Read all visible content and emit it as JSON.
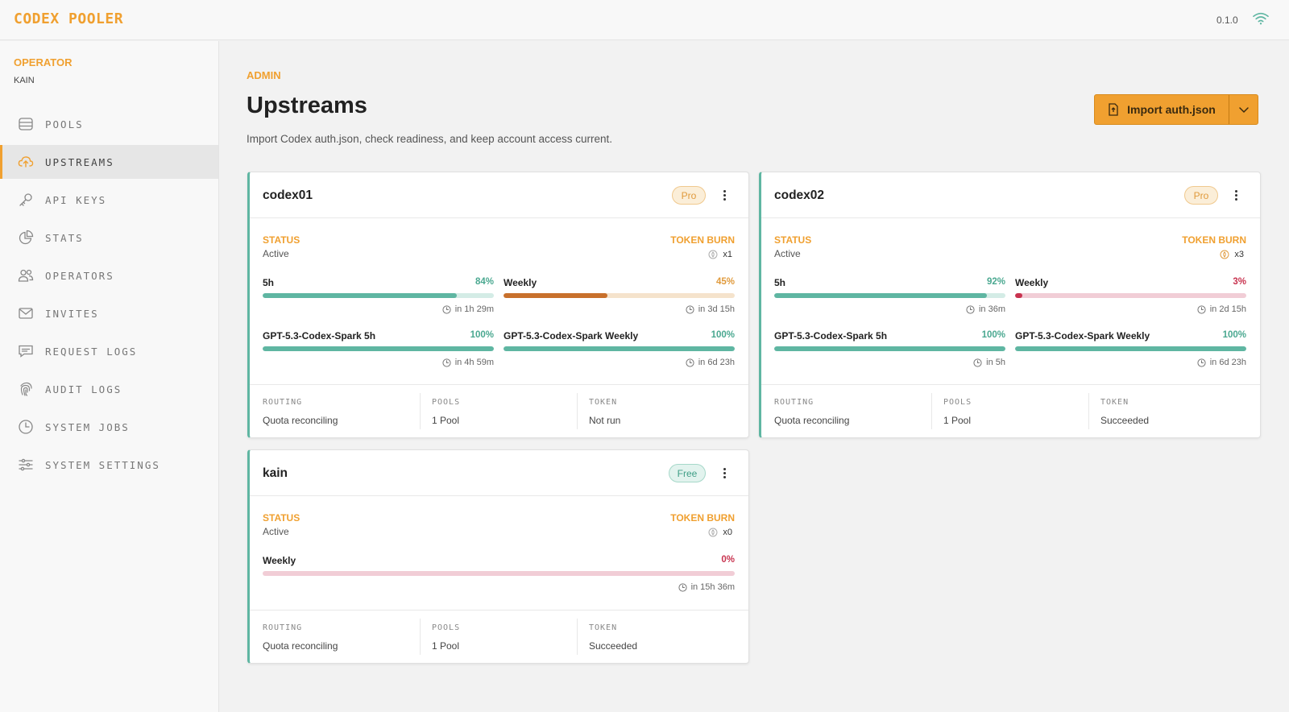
{
  "app": {
    "brand": "CODEX POOLER",
    "version": "0.1.0"
  },
  "sidebar": {
    "operator_label": "OPERATOR",
    "operator_name": "KAIN",
    "items": [
      {
        "label": "POOLS",
        "icon": "pools-icon",
        "active": false
      },
      {
        "label": "UPSTREAMS",
        "icon": "cloud-upload-icon",
        "active": true
      },
      {
        "label": "API KEYS",
        "icon": "key-icon",
        "active": false
      },
      {
        "label": "STATS",
        "icon": "pie-chart-icon",
        "active": false
      },
      {
        "label": "OPERATORS",
        "icon": "users-icon",
        "active": false
      },
      {
        "label": "INVITES",
        "icon": "mail-icon",
        "active": false
      },
      {
        "label": "REQUEST LOGS",
        "icon": "message-icon",
        "active": false
      },
      {
        "label": "AUDIT LOGS",
        "icon": "fingerprint-icon",
        "active": false
      },
      {
        "label": "SYSTEM JOBS",
        "icon": "clock-icon",
        "active": false
      },
      {
        "label": "SYSTEM SETTINGS",
        "icon": "sliders-icon",
        "active": false
      }
    ]
  },
  "page": {
    "breadcrumb": "ADMIN",
    "title": "Upstreams",
    "subtitle": "Import Codex auth.json, check readiness, and keep account access current.",
    "import_label": "Import auth.json"
  },
  "labels": {
    "status": "STATUS",
    "token_burn": "TOKEN BURN",
    "routing": "ROUTING",
    "pools": "POOLS",
    "token": "TOKEN"
  },
  "colors": {
    "accent": "#f0a030",
    "teal": "#5fb6a2",
    "orange_bar": "#c8702c",
    "red": "#c8334f"
  },
  "cards": [
    {
      "name": "codex01",
      "plan": "Pro",
      "status": "Active",
      "burn": "x1",
      "meters": [
        {
          "label": "5h",
          "pct_text": "84%",
          "value": 84,
          "reset": "in 1h 29m",
          "tone": "teal"
        },
        {
          "label": "Weekly",
          "pct_text": "45%",
          "value": 45,
          "reset": "in 3d 15h",
          "tone": "orange"
        },
        {
          "label": "GPT-5.3-Codex-Spark 5h",
          "pct_text": "100%",
          "value": 100,
          "reset": "in 4h 59m",
          "tone": "teal"
        },
        {
          "label": "GPT-5.3-Codex-Spark Weekly",
          "pct_text": "100%",
          "value": 100,
          "reset": "in 6d 23h",
          "tone": "teal"
        }
      ],
      "routing": "Quota reconciling",
      "pools": "1 Pool",
      "token": "Not run"
    },
    {
      "name": "codex02",
      "plan": "Pro",
      "status": "Active",
      "burn": "x3",
      "meters": [
        {
          "label": "5h",
          "pct_text": "92%",
          "value": 92,
          "reset": "in 36m",
          "tone": "teal"
        },
        {
          "label": "Weekly",
          "pct_text": "3%",
          "value": 3,
          "reset": "in 2d 15h",
          "tone": "red"
        },
        {
          "label": "GPT-5.3-Codex-Spark 5h",
          "pct_text": "100%",
          "value": 100,
          "reset": "in 5h",
          "tone": "teal"
        },
        {
          "label": "GPT-5.3-Codex-Spark Weekly",
          "pct_text": "100%",
          "value": 100,
          "reset": "in 6d 23h",
          "tone": "teal"
        }
      ],
      "routing": "Quota reconciling",
      "pools": "1 Pool",
      "token": "Succeeded"
    },
    {
      "name": "kain",
      "plan": "Free",
      "status": "Active",
      "burn": "x0",
      "meters": [
        {
          "label": "Weekly",
          "pct_text": "0%",
          "value": 0,
          "reset": "in 15h 36m",
          "tone": "red"
        }
      ],
      "routing": "Quota reconciling",
      "pools": "1 Pool",
      "token": "Succeeded"
    }
  ]
}
